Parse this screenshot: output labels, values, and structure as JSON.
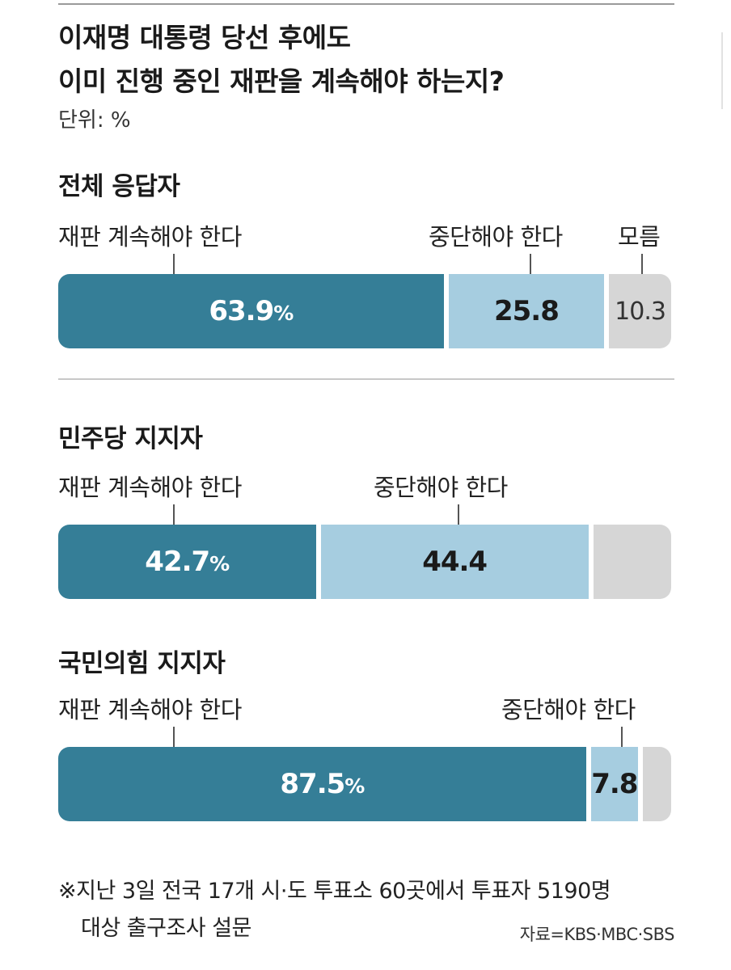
{
  "title_lines": [
    "이재명 대통령 당선 후에도",
    "이미 진행 중인 재판을 계속해야 하는지?"
  ],
  "unit": "단위: %",
  "colors": {
    "continue": "#357e97",
    "stop": "#a6cde0",
    "unknown": "#d6d6d6"
  },
  "chart_data": {
    "type": "bar",
    "stacked": true,
    "orientation": "horizontal",
    "title": "이재명 대통령 당선 후에도 이미 진행 중인 재판을 계속해야 하는지?",
    "unit": "%",
    "categories": [
      "전체 응답자",
      "민주당 지지자",
      "국민의힘 지지자"
    ],
    "series": [
      {
        "name": "재판 계속해야 한다",
        "values": [
          63.9,
          42.7,
          87.5
        ]
      },
      {
        "name": "중단해야 한다",
        "values": [
          25.8,
          44.4,
          7.8
        ]
      },
      {
        "name": "모름",
        "values": [
          10.3,
          12.9,
          4.7
        ]
      }
    ]
  },
  "groups": [
    {
      "title": "전체 응답자",
      "labels": {
        "continue": "재판 계속해야 한다",
        "stop": "중단해야 한다",
        "unknown": "모름"
      },
      "values": {
        "continue": 63.9,
        "stop": 25.8,
        "unknown": 10.3
      },
      "value_text": {
        "continue": "63.9",
        "pct": "%",
        "stop": "25.8",
        "unknown": "10.3"
      }
    },
    {
      "title": "민주당 지지자",
      "labels": {
        "continue": "재판 계속해야 한다",
        "stop": "중단해야 한다"
      },
      "values": {
        "continue": 42.7,
        "stop": 44.4,
        "unknown": 12.9
      },
      "value_text": {
        "continue": "42.7",
        "pct": "%",
        "stop": "44.4"
      }
    },
    {
      "title": "국민의힘 지지자",
      "labels": {
        "continue": "재판 계속해야 한다",
        "stop": "중단해야 한다"
      },
      "values": {
        "continue": 87.5,
        "stop": 7.8,
        "unknown": 4.7
      },
      "value_text": {
        "continue": "87.5",
        "pct": "%",
        "stop": "7.8"
      }
    }
  ],
  "note_lines": [
    "※지난 3일 전국 17개 시·도 투표소 60곳에서 투표자 5190명",
    "대상 출구조사 설문"
  ],
  "source": "자료=KBS·MBC·SBS"
}
